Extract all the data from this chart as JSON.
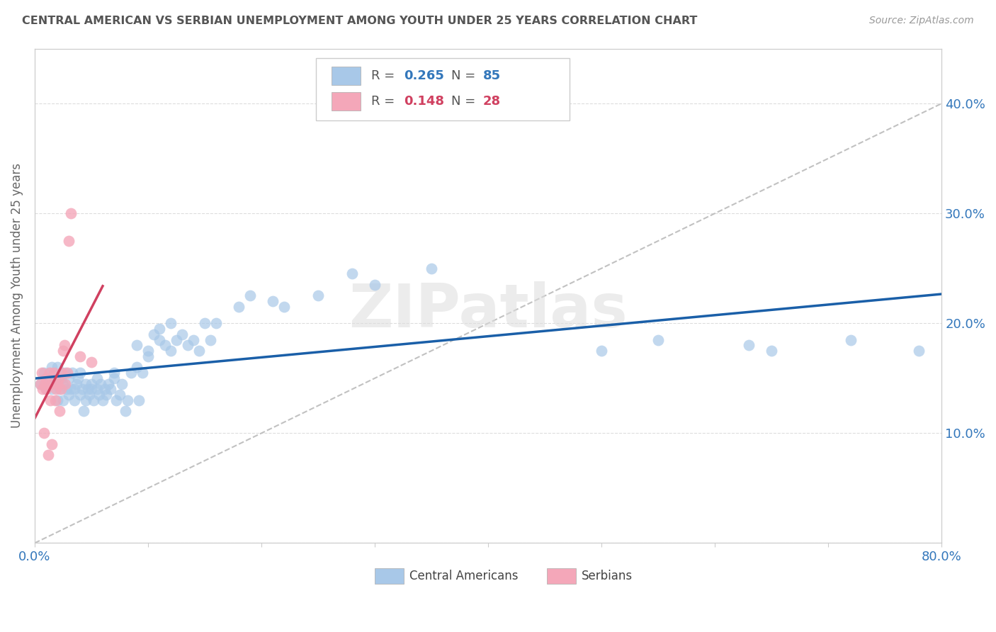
{
  "title": "CENTRAL AMERICAN VS SERBIAN UNEMPLOYMENT AMONG YOUTH UNDER 25 YEARS CORRELATION CHART",
  "source": "Source: ZipAtlas.com",
  "ylabel": "Unemployment Among Youth under 25 years",
  "xlim": [
    0.0,
    0.8
  ],
  "ylim": [
    0.0,
    0.45
  ],
  "xticks": [
    0.0,
    0.1,
    0.2,
    0.3,
    0.4,
    0.5,
    0.6,
    0.7,
    0.8
  ],
  "yticks": [
    0.0,
    0.1,
    0.2,
    0.3,
    0.4
  ],
  "watermark": "ZIPatlas",
  "blue_color": "#a8c8e8",
  "pink_color": "#f4a7b9",
  "blue_line_color": "#1a5fa8",
  "pink_line_color": "#d04060",
  "background_color": "#ffffff",
  "R_blue": 0.265,
  "N_blue": 85,
  "R_pink": 0.148,
  "N_pink": 28,
  "blue_points_x": [
    0.005,
    0.008,
    0.01,
    0.012,
    0.015,
    0.015,
    0.018,
    0.02,
    0.02,
    0.022,
    0.023,
    0.025,
    0.025,
    0.027,
    0.028,
    0.03,
    0.03,
    0.032,
    0.033,
    0.035,
    0.035,
    0.037,
    0.038,
    0.04,
    0.04,
    0.042,
    0.043,
    0.045,
    0.045,
    0.047,
    0.048,
    0.05,
    0.05,
    0.052,
    0.055,
    0.055,
    0.057,
    0.058,
    0.06,
    0.062,
    0.063,
    0.065,
    0.067,
    0.07,
    0.07,
    0.072,
    0.075,
    0.077,
    0.08,
    0.082,
    0.085,
    0.09,
    0.09,
    0.092,
    0.095,
    0.1,
    0.1,
    0.105,
    0.11,
    0.11,
    0.115,
    0.12,
    0.12,
    0.125,
    0.13,
    0.135,
    0.14,
    0.145,
    0.15,
    0.155,
    0.16,
    0.18,
    0.19,
    0.21,
    0.22,
    0.25,
    0.28,
    0.3,
    0.35,
    0.5,
    0.55,
    0.63,
    0.65,
    0.72,
    0.78
  ],
  "blue_points_y": [
    0.145,
    0.155,
    0.14,
    0.15,
    0.16,
    0.14,
    0.15,
    0.13,
    0.16,
    0.14,
    0.15,
    0.145,
    0.13,
    0.155,
    0.14,
    0.135,
    0.15,
    0.14,
    0.155,
    0.13,
    0.14,
    0.145,
    0.15,
    0.135,
    0.155,
    0.14,
    0.12,
    0.145,
    0.13,
    0.14,
    0.135,
    0.14,
    0.145,
    0.13,
    0.15,
    0.14,
    0.135,
    0.145,
    0.13,
    0.14,
    0.135,
    0.145,
    0.14,
    0.15,
    0.155,
    0.13,
    0.135,
    0.145,
    0.12,
    0.13,
    0.155,
    0.16,
    0.18,
    0.13,
    0.155,
    0.17,
    0.175,
    0.19,
    0.185,
    0.195,
    0.18,
    0.175,
    0.2,
    0.185,
    0.19,
    0.18,
    0.185,
    0.175,
    0.2,
    0.185,
    0.2,
    0.215,
    0.225,
    0.22,
    0.215,
    0.225,
    0.245,
    0.235,
    0.25,
    0.175,
    0.185,
    0.18,
    0.175,
    0.185,
    0.175
  ],
  "pink_points_x": [
    0.005,
    0.006,
    0.007,
    0.008,
    0.009,
    0.01,
    0.01,
    0.012,
    0.013,
    0.014,
    0.015,
    0.015,
    0.017,
    0.018,
    0.019,
    0.02,
    0.021,
    0.022,
    0.023,
    0.024,
    0.025,
    0.026,
    0.027,
    0.029,
    0.03,
    0.032,
    0.04,
    0.05
  ],
  "pink_points_y": [
    0.145,
    0.155,
    0.14,
    0.1,
    0.145,
    0.14,
    0.15,
    0.08,
    0.155,
    0.13,
    0.09,
    0.145,
    0.155,
    0.13,
    0.14,
    0.145,
    0.15,
    0.12,
    0.14,
    0.155,
    0.175,
    0.18,
    0.145,
    0.155,
    0.275,
    0.3,
    0.17,
    0.165
  ]
}
